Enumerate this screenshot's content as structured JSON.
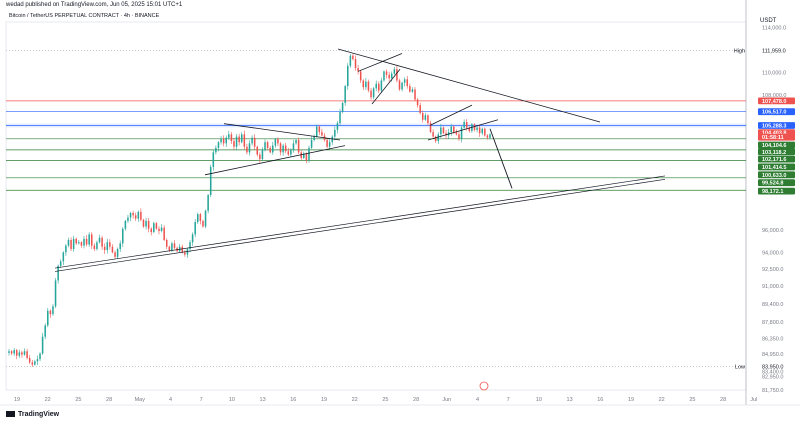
{
  "header": {
    "published": "wedad published on TradingView.com, Jun 05, 2025 15:01 UTC+1",
    "symbol": "Bitcoin / TetherUS PERPETUAL CONTRACT · 4h · BINANCE"
  },
  "brand": "TradingView",
  "colors": {
    "up": "#26a69a",
    "down": "#ef5350",
    "trend": "#131722",
    "line_blue": "#2962ff",
    "line_red": "#ef5350",
    "line_green": "#2e7d32"
  },
  "chart_data": {
    "type": "candlestick",
    "currency": "USDT",
    "ylim": [
      81750,
      114500
    ],
    "x_ticks": [
      "19",
      "22",
      "25",
      "28",
      "May",
      "4",
      "7",
      "10",
      "13",
      "16",
      "19",
      "22",
      "25",
      "28",
      "Jun",
      "4",
      "7",
      "10",
      "13",
      "16",
      "19",
      "22",
      "25",
      "28",
      "Jul"
    ],
    "y_ticks": [
      "114,000.0",
      "110,000.0",
      "108,000.0",
      "96,000.0",
      "94,000.0",
      "92,500.0",
      "91,000.0",
      "89,400.0",
      "87,800.0",
      "86,350.0",
      "84,950.0",
      "83,400.0",
      "82,950.0",
      "81,750.0"
    ],
    "price_tags": [
      {
        "label": "High",
        "value": "111,959.0",
        "price": 111959,
        "kind": "high"
      },
      {
        "label": "",
        "value": "107,478.0",
        "price": 107478,
        "kind": "red"
      },
      {
        "label": "",
        "value": "106,517.0",
        "price": 106517,
        "kind": "blue"
      },
      {
        "label": "",
        "value": "105,288.3",
        "price": 105288,
        "kind": "blue"
      },
      {
        "label": "",
        "value": "104,403.8",
        "price": 104650,
        "kind": "red"
      },
      {
        "label": "",
        "value": "01:58:11",
        "price": 104250,
        "kind": "red"
      },
      {
        "label": "",
        "value": "104,104.6",
        "price": 103550,
        "kind": "green"
      },
      {
        "label": "",
        "value": "103,118.2",
        "price": 102950,
        "kind": "green"
      },
      {
        "label": "",
        "value": "102,171.6",
        "price": 102300,
        "kind": "green"
      },
      {
        "label": "",
        "value": "101,414.5",
        "price": 101600,
        "kind": "green"
      },
      {
        "label": "",
        "value": "100,633.0",
        "price": 100900,
        "kind": "green"
      },
      {
        "label": "",
        "value": "99,524.8",
        "price": 100200,
        "kind": "green"
      },
      {
        "label": "",
        "value": "98,172.1",
        "price": 99450,
        "kind": "green"
      },
      {
        "label": "Low",
        "value": "83,950.0",
        "price": 83850,
        "kind": "low"
      }
    ],
    "horizontal_lines": [
      {
        "price": 107478,
        "color": "red"
      },
      {
        "price": 106517,
        "color": "blue"
      },
      {
        "price": 105288,
        "color": "blue"
      },
      {
        "price": 104104,
        "color": "green"
      },
      {
        "price": 103118,
        "color": "green"
      },
      {
        "price": 102171,
        "color": "green"
      },
      {
        "price": 100633,
        "color": "green"
      },
      {
        "price": 99524,
        "color": "green"
      }
    ],
    "closes": [
      85200,
      85000,
      85300,
      84800,
      85100,
      84900,
      85200,
      84600,
      84200,
      84000,
      84300,
      84500,
      85000,
      86500,
      87500,
      88800,
      88500,
      89200,
      91500,
      92800,
      93200,
      94000,
      94600,
      95100,
      94300,
      95200,
      94800,
      94900,
      94600,
      95200,
      94700,
      95600,
      94600,
      94300,
      94900,
      95300,
      94500,
      94200,
      94900,
      94500,
      94000,
      93600,
      94300,
      94800,
      96100,
      96800,
      97100,
      97500,
      97300,
      97000,
      97600,
      96900,
      96300,
      96800,
      96100,
      95800,
      96600,
      96100,
      95900,
      96200,
      95100,
      94500,
      94200,
      94800,
      94400,
      94100,
      94500,
      94000,
      93800,
      94300,
      94900,
      95600,
      96700,
      97400,
      96800,
      96300,
      97700,
      99100,
      101600,
      102900,
      103300,
      103800,
      104100,
      103700,
      104200,
      104500,
      103900,
      103400,
      104300,
      103800,
      104500,
      103400,
      102900,
      103700,
      104200,
      103400,
      102700,
      102300,
      103100,
      103800,
      103300,
      102900,
      103500,
      104100,
      103700,
      102900,
      103500,
      103000,
      102700,
      103100,
      103700,
      104000,
      102900,
      102400,
      102800,
      102200,
      103300,
      104000,
      104300,
      105200,
      104700,
      104400,
      104000,
      103400,
      103800,
      104300,
      104900,
      105500,
      106500,
      107300,
      108800,
      110600,
      111500,
      111200,
      110400,
      110100,
      109300,
      108700,
      109200,
      108400,
      107800,
      108600,
      109000,
      108400,
      109300,
      110100,
      109800,
      109500,
      109900,
      110300,
      109300,
      108500,
      109100,
      109400,
      108800,
      108300,
      108500,
      107600,
      107100,
      106400,
      105800,
      106200,
      105500,
      104700,
      104300,
      103900,
      104500,
      105100,
      104600,
      104400,
      104700,
      105200,
      104700,
      104500,
      104100,
      105100,
      105600,
      105100,
      104800,
      105400,
      104900,
      105100,
      104600,
      105000,
      104400,
      104200,
      104500
    ]
  }
}
